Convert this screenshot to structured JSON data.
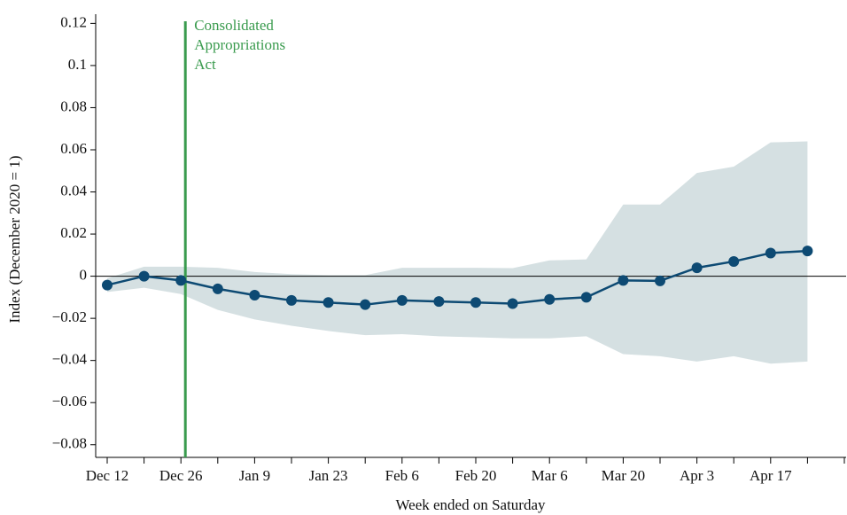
{
  "chart_data": {
    "type": "line",
    "x_label": "Week ended on Saturday",
    "y_label": "Index (December 2020 = 1)",
    "categories": [
      "Dec 12",
      null,
      "Dec 26",
      null,
      "Jan 9",
      null,
      "Jan 23",
      null,
      "Feb 6",
      null,
      "Feb 20",
      null,
      "Mar 6",
      null,
      "Mar 20",
      null,
      "Apr 3",
      null,
      "Apr 17",
      null
    ],
    "series": [
      {
        "color": "#0d4a73",
        "values": [
          -0.0042,
          0,
          -0.002,
          -0.006,
          -0.009,
          -0.0115,
          -0.0125,
          -0.0135,
          -0.0115,
          -0.012,
          -0.0125,
          -0.013,
          -0.011,
          -0.01,
          -0.002,
          -0.0022,
          0.004,
          0.007,
          0.011,
          0.012
        ],
        "upper": [
          -0.001,
          0.0045,
          0.0045,
          0.004,
          0.002,
          0.001,
          0.0005,
          0.0005,
          0.004,
          0.004,
          0.004,
          0.0038,
          0.0075,
          0.008,
          0.034,
          0.034,
          0.049,
          0.052,
          0.0635,
          0.064
        ],
        "lower": [
          -0.0075,
          -0.0055,
          -0.0085,
          -0.016,
          -0.0205,
          -0.0235,
          -0.026,
          -0.028,
          -0.0275,
          -0.0285,
          -0.029,
          -0.0295,
          -0.0295,
          -0.0285,
          -0.037,
          -0.038,
          -0.0405,
          -0.038,
          -0.0415,
          -0.0405
        ],
        "band_color": "#d5e0e2"
      }
    ],
    "ylim": [
      -0.086,
      0.121
    ],
    "yticks": [
      {
        "value": -0.08,
        "label": "−0.08"
      },
      {
        "value": -0.06,
        "label": "−0.06"
      },
      {
        "value": -0.04,
        "label": "−0.04"
      },
      {
        "value": -0.02,
        "label": "−0.02"
      },
      0,
      0.02,
      0.04,
      0.06,
      0.08,
      0.1,
      0.12
    ],
    "annotation": {
      "lines": [
        "Consolidated",
        "Appropriations",
        "Act"
      ],
      "color": "#3a9b4e"
    }
  }
}
